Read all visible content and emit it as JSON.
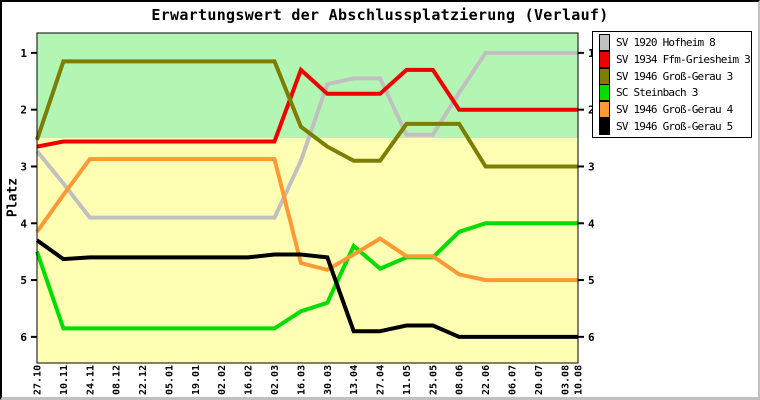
{
  "title": "Erwartungswert der Abschlussplatzierung (Verlauf)",
  "chart_data": {
    "type": "line",
    "title": "Erwartungswert der Abschlussplatzierung (Verlauf)",
    "xlabel": "",
    "ylabel": "Platz",
    "y_inverted": true,
    "ylim": [
      0.65,
      6.46
    ],
    "y_ticks": [
      1,
      2,
      3,
      4,
      5,
      6
    ],
    "grid": false,
    "legend_position": "top-right",
    "x_tick_rotation": 90,
    "categories": [
      "27.10",
      "10.11",
      "24.11",
      "08.12",
      "22.12",
      "05.01",
      "19.01",
      "02.02",
      "16.02",
      "02.03",
      "16.03",
      "30.03",
      "13.04",
      "27.04",
      "11.05",
      "25.05",
      "08.06",
      "22.06",
      "06.07",
      "20.07",
      "03.08",
      "10.08"
    ],
    "days": [
      0,
      14,
      28,
      42,
      56,
      70,
      84,
      98,
      112,
      126,
      140,
      154,
      168,
      182,
      196,
      210,
      224,
      238,
      252,
      266,
      280,
      287
    ],
    "zones": [
      {
        "name": "upper-green-zone",
        "from": 0.65,
        "to": 2.5,
        "color": "#b3f6b3"
      },
      {
        "name": "lower-yellow-zone",
        "from": 2.5,
        "to": 6.46,
        "color": "#ffffb3"
      }
    ],
    "series": [
      {
        "name": "SV 1920 Hofheim 8",
        "color": "#c0c0c0",
        "values": [
          2.73,
          3.3,
          3.9,
          3.9,
          3.9,
          3.9,
          3.9,
          3.9,
          3.9,
          3.9,
          2.9,
          1.55,
          1.45,
          1.45,
          2.44,
          2.44,
          1.7,
          1.0,
          1.0,
          1.0,
          1.0,
          1.0
        ]
      },
      {
        "name": "SV 1934 Ffm-Griesheim 3",
        "color": "#ee0000",
        "values": [
          2.65,
          2.56,
          2.56,
          2.56,
          2.56,
          2.56,
          2.56,
          2.56,
          2.56,
          2.56,
          1.3,
          1.72,
          1.72,
          1.72,
          1.3,
          1.3,
          2.0,
          2.0,
          2.0,
          2.0,
          2.0,
          2.0
        ]
      },
      {
        "name": "SV 1946 Groß-Gerau 3",
        "color": "#7d7d00",
        "values": [
          2.53,
          1.15,
          1.15,
          1.15,
          1.15,
          1.15,
          1.15,
          1.15,
          1.15,
          1.15,
          2.3,
          2.65,
          2.9,
          2.9,
          2.25,
          2.25,
          2.25,
          3.0,
          3.0,
          3.0,
          3.0,
          3.0
        ]
      },
      {
        "name": "SC Steinbach 3",
        "color": "#00dd00",
        "values": [
          4.5,
          5.85,
          5.85,
          5.85,
          5.85,
          5.85,
          5.85,
          5.85,
          5.85,
          5.85,
          5.55,
          5.4,
          4.4,
          4.8,
          4.6,
          4.6,
          4.15,
          4.0,
          4.0,
          4.0,
          4.0,
          4.0
        ]
      },
      {
        "name": "SV 1946 Groß-Gerau 4",
        "color": "#ff9933",
        "values": [
          4.15,
          3.5,
          2.87,
          2.87,
          2.87,
          2.87,
          2.87,
          2.87,
          2.87,
          2.87,
          4.7,
          4.82,
          4.55,
          4.27,
          4.58,
          4.58,
          4.9,
          5.0,
          5.0,
          5.0,
          5.0,
          5.0
        ]
      },
      {
        "name": "SV 1946 Groß-Gerau 5",
        "color": "#000000",
        "values": [
          4.3,
          4.63,
          4.6,
          4.6,
          4.6,
          4.6,
          4.6,
          4.6,
          4.6,
          4.55,
          4.55,
          4.6,
          5.9,
          5.9,
          5.8,
          5.8,
          6.0,
          6.0,
          6.0,
          6.0,
          6.0,
          6.0
        ]
      }
    ]
  }
}
